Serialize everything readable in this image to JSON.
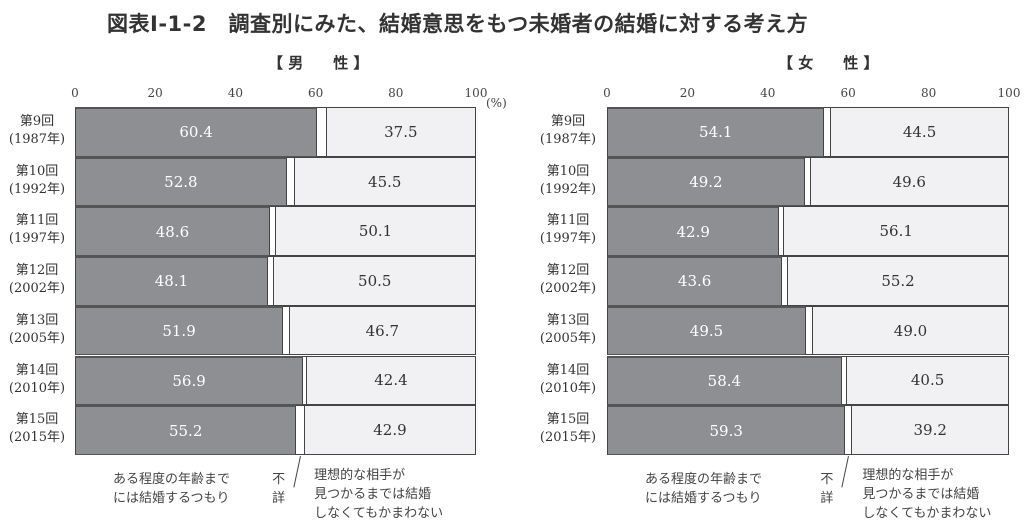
{
  "title": "図表Ⅰ-1-2　調査別にみた、結婚意思をもつ未婚者の結婚に対する考え方",
  "panels": [
    {
      "title": "【 男　　性 】"
    },
    {
      "title": "【 女　　性 】"
    }
  ],
  "axis": {
    "ticks": [
      "0",
      "20",
      "40",
      "60",
      "80",
      "100"
    ],
    "unit": "(%)"
  },
  "categories": [
    {
      "line1": "第9回",
      "line2": "(1987年)"
    },
    {
      "line1": "第10回",
      "line2": "(1992年)"
    },
    {
      "line1": "第11回",
      "line2": "(1997年)"
    },
    {
      "line1": "第12回",
      "line2": "(2002年)"
    },
    {
      "line1": "第13回",
      "line2": "(2005年)"
    },
    {
      "line1": "第14回",
      "line2": "(2010年)"
    },
    {
      "line1": "第15回",
      "line2": "(2015年)"
    }
  ],
  "legend": {
    "series1": "ある程度の年齢まで\nには結婚するつもり",
    "unknown": "不\n詳",
    "series2": "理想的な相手が\n見つかるまでは結婚\nしなくてもかまわない"
  },
  "colors": {
    "series1": "#8e8f93",
    "unknown": "#ffffff",
    "series2": "#f1f1f3"
  },
  "chart_data": [
    {
      "type": "bar",
      "orientation": "horizontal-stacked-100",
      "title": "【男性】",
      "categories": [
        "第9回(1987年)",
        "第10回(1992年)",
        "第11回(1997年)",
        "第12回(2002年)",
        "第13回(2005年)",
        "第14回(2010年)",
        "第15回(2015年)"
      ],
      "series": [
        {
          "name": "ある程度の年齢までには結婚するつもり",
          "values": [
            "60.4",
            "52.8",
            "48.6",
            "48.1",
            "51.9",
            "56.9",
            "55.2"
          ]
        },
        {
          "name": "不詳",
          "values": [
            2.1,
            1.7,
            1.3,
            1.4,
            1.4,
            0.7,
            1.9
          ]
        },
        {
          "name": "理想的な相手が見つかるまでは結婚しなくてもかまわない",
          "values": [
            "37.5",
            "45.5",
            "50.1",
            "50.5",
            "46.7",
            "42.4",
            "42.9"
          ]
        }
      ],
      "xlabel": "(%)",
      "xlim": [
        0,
        100
      ],
      "xticks": [
        0,
        20,
        40,
        60,
        80,
        100
      ]
    },
    {
      "type": "bar",
      "orientation": "horizontal-stacked-100",
      "title": "【女性】",
      "categories": [
        "第9回(1987年)",
        "第10回(1992年)",
        "第11回(1997年)",
        "第12回(2002年)",
        "第13回(2005年)",
        "第14回(2010年)",
        "第15回(2015年)"
      ],
      "series": [
        {
          "name": "ある程度の年齢までには結婚するつもり",
          "values": [
            "54.1",
            "49.2",
            "42.9",
            "43.6",
            "49.5",
            "58.4",
            "59.3"
          ]
        },
        {
          "name": "不詳",
          "values": [
            1.4,
            1.2,
            1.0,
            1.2,
            1.5,
            1.1,
            1.5
          ]
        },
        {
          "name": "理想的な相手が見つかるまでは結婚しなくてもかまわない",
          "values": [
            "44.5",
            "49.6",
            "56.1",
            "55.2",
            "49.0",
            "40.5",
            "39.2"
          ]
        }
      ],
      "xlabel": "(%)",
      "xlim": [
        0,
        100
      ],
      "xticks": [
        0,
        20,
        40,
        60,
        80,
        100
      ]
    }
  ]
}
